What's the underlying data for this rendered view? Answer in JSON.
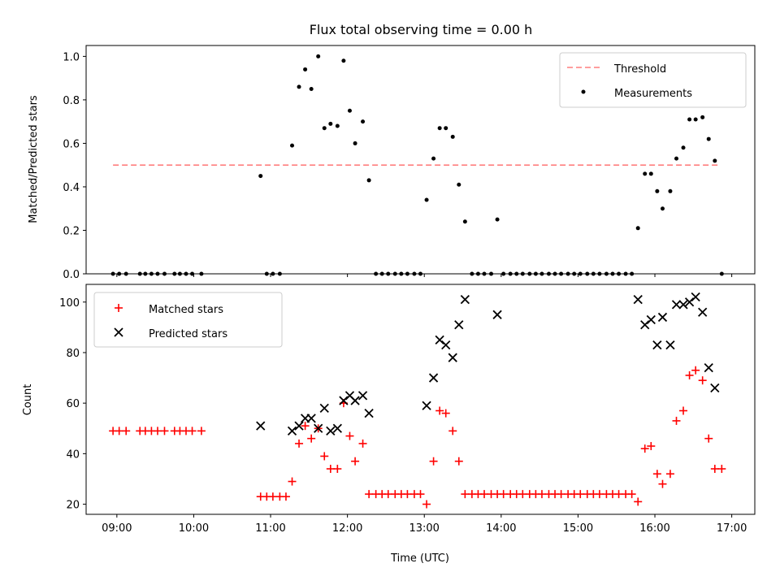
{
  "colors": {
    "threshold": "#ff7f7f",
    "measurements": "#000000",
    "matched": "#ff0000",
    "predicted": "#000000"
  },
  "chart_data": [
    {
      "type": "scatter",
      "title": "Flux total observing time = 0.00 h",
      "ylabel": "Matched/Predicted stars",
      "xlabel": "",
      "xlim": [
        8.6,
        17.3
      ],
      "ylim": [
        0,
        1.05
      ],
      "yticks": [
        0.0,
        0.2,
        0.4,
        0.6,
        0.8,
        1.0
      ],
      "ytick_labels": [
        "0.0",
        "0.2",
        "0.4",
        "0.6",
        "0.8",
        "1.0"
      ],
      "legend_position": "top-right",
      "threshold": {
        "name": "Threshold",
        "value": 0.5,
        "x_range": [
          8.95,
          16.85
        ]
      },
      "series": [
        {
          "name": "Measurements",
          "points": [
            [
              8.95,
              0
            ],
            [
              9.03,
              0
            ],
            [
              9.12,
              0
            ],
            [
              9.3,
              0
            ],
            [
              9.37,
              0
            ],
            [
              9.45,
              0
            ],
            [
              9.53,
              0
            ],
            [
              9.62,
              0
            ],
            [
              9.75,
              0
            ],
            [
              9.82,
              0
            ],
            [
              9.9,
              0
            ],
            [
              9.98,
              0
            ],
            [
              10.1,
              0
            ],
            [
              10.87,
              0.45
            ],
            [
              10.95,
              0
            ],
            [
              11.03,
              0
            ],
            [
              11.12,
              0
            ],
            [
              11.28,
              0.59
            ],
            [
              11.37,
              0.86
            ],
            [
              11.45,
              0.94
            ],
            [
              11.53,
              0.85
            ],
            [
              11.62,
              1.0
            ],
            [
              11.7,
              0.67
            ],
            [
              11.78,
              0.69
            ],
            [
              11.87,
              0.68
            ],
            [
              11.95,
              0.98
            ],
            [
              12.03,
              0.75
            ],
            [
              12.1,
              0.6
            ],
            [
              12.2,
              0.7
            ],
            [
              12.28,
              0.43
            ],
            [
              12.37,
              0
            ],
            [
              12.45,
              0
            ],
            [
              12.53,
              0
            ],
            [
              12.62,
              0
            ],
            [
              12.7,
              0
            ],
            [
              12.78,
              0
            ],
            [
              12.87,
              0
            ],
            [
              12.95,
              0
            ],
            [
              13.03,
              0.34
            ],
            [
              13.12,
              0.53
            ],
            [
              13.2,
              0.67
            ],
            [
              13.28,
              0.67
            ],
            [
              13.37,
              0.63
            ],
            [
              13.45,
              0.41
            ],
            [
              13.53,
              0.24
            ],
            [
              13.62,
              0
            ],
            [
              13.7,
              0
            ],
            [
              13.78,
              0
            ],
            [
              13.87,
              0
            ],
            [
              13.95,
              0.25
            ],
            [
              14.03,
              0
            ],
            [
              14.12,
              0
            ],
            [
              14.2,
              0
            ],
            [
              14.28,
              0
            ],
            [
              14.37,
              0
            ],
            [
              14.45,
              0
            ],
            [
              14.53,
              0
            ],
            [
              14.62,
              0
            ],
            [
              14.7,
              0
            ],
            [
              14.78,
              0
            ],
            [
              14.87,
              0
            ],
            [
              14.95,
              0
            ],
            [
              15.03,
              0
            ],
            [
              15.12,
              0
            ],
            [
              15.2,
              0
            ],
            [
              15.28,
              0
            ],
            [
              15.37,
              0
            ],
            [
              15.45,
              0
            ],
            [
              15.53,
              0
            ],
            [
              15.62,
              0
            ],
            [
              15.7,
              0
            ],
            [
              15.78,
              0.21
            ],
            [
              15.87,
              0.46
            ],
            [
              15.95,
              0.46
            ],
            [
              16.03,
              0.38
            ],
            [
              16.1,
              0.3
            ],
            [
              16.2,
              0.38
            ],
            [
              16.28,
              0.53
            ],
            [
              16.37,
              0.58
            ],
            [
              16.45,
              0.71
            ],
            [
              16.53,
              0.71
            ],
            [
              16.62,
              0.72
            ],
            [
              16.7,
              0.62
            ],
            [
              16.78,
              0.52
            ],
            [
              16.87,
              0
            ]
          ]
        }
      ]
    },
    {
      "type": "scatter",
      "title": "",
      "ylabel": "Count",
      "xlabel": "Time (UTC)",
      "xlim": [
        8.6,
        17.3
      ],
      "ylim": [
        16,
        107
      ],
      "xticks": [
        9,
        10,
        11,
        12,
        13,
        14,
        15,
        16,
        17
      ],
      "xtick_labels": [
        "09:00",
        "10:00",
        "11:00",
        "12:00",
        "13:00",
        "14:00",
        "15:00",
        "16:00",
        "17:00"
      ],
      "yticks": [
        20,
        40,
        60,
        80,
        100
      ],
      "ytick_labels": [
        "20",
        "40",
        "60",
        "80",
        "100"
      ],
      "legend_position": "top-left",
      "series": [
        {
          "name": "Matched stars",
          "points": [
            [
              8.95,
              49
            ],
            [
              9.03,
              49
            ],
            [
              9.12,
              49
            ],
            [
              9.3,
              49
            ],
            [
              9.37,
              49
            ],
            [
              9.45,
              49
            ],
            [
              9.53,
              49
            ],
            [
              9.62,
              49
            ],
            [
              9.75,
              49
            ],
            [
              9.82,
              49
            ],
            [
              9.9,
              49
            ],
            [
              9.98,
              49
            ],
            [
              10.1,
              49
            ],
            [
              10.87,
              23
            ],
            [
              10.95,
              23
            ],
            [
              11.03,
              23
            ],
            [
              11.12,
              23
            ],
            [
              11.2,
              23
            ],
            [
              11.28,
              29
            ],
            [
              11.37,
              44
            ],
            [
              11.45,
              51
            ],
            [
              11.53,
              46
            ],
            [
              11.62,
              50
            ],
            [
              11.7,
              39
            ],
            [
              11.78,
              34
            ],
            [
              11.87,
              34
            ],
            [
              11.95,
              60
            ],
            [
              12.03,
              47
            ],
            [
              12.1,
              37
            ],
            [
              12.2,
              44
            ],
            [
              12.28,
              24
            ],
            [
              12.37,
              24
            ],
            [
              12.45,
              24
            ],
            [
              12.53,
              24
            ],
            [
              12.62,
              24
            ],
            [
              12.7,
              24
            ],
            [
              12.78,
              24
            ],
            [
              12.87,
              24
            ],
            [
              12.95,
              24
            ],
            [
              13.03,
              20
            ],
            [
              13.12,
              37
            ],
            [
              13.2,
              57
            ],
            [
              13.28,
              56
            ],
            [
              13.37,
              49
            ],
            [
              13.45,
              37
            ],
            [
              13.53,
              24
            ],
            [
              13.62,
              24
            ],
            [
              13.7,
              24
            ],
            [
              13.78,
              24
            ],
            [
              13.87,
              24
            ],
            [
              13.95,
              24
            ],
            [
              14.03,
              24
            ],
            [
              14.12,
              24
            ],
            [
              14.2,
              24
            ],
            [
              14.28,
              24
            ],
            [
              14.37,
              24
            ],
            [
              14.45,
              24
            ],
            [
              14.53,
              24
            ],
            [
              14.62,
              24
            ],
            [
              14.7,
              24
            ],
            [
              14.78,
              24
            ],
            [
              14.87,
              24
            ],
            [
              14.95,
              24
            ],
            [
              15.03,
              24
            ],
            [
              15.12,
              24
            ],
            [
              15.2,
              24
            ],
            [
              15.28,
              24
            ],
            [
              15.37,
              24
            ],
            [
              15.45,
              24
            ],
            [
              15.53,
              24
            ],
            [
              15.62,
              24
            ],
            [
              15.7,
              24
            ],
            [
              15.78,
              21
            ],
            [
              15.87,
              42
            ],
            [
              15.95,
              43
            ],
            [
              16.03,
              32
            ],
            [
              16.1,
              28
            ],
            [
              16.2,
              32
            ],
            [
              16.28,
              53
            ],
            [
              16.37,
              57
            ],
            [
              16.45,
              71
            ],
            [
              16.53,
              73
            ],
            [
              16.62,
              69
            ],
            [
              16.7,
              46
            ],
            [
              16.78,
              34
            ],
            [
              16.87,
              34
            ]
          ]
        },
        {
          "name": "Predicted stars",
          "points": [
            [
              10.87,
              51
            ],
            [
              11.28,
              49
            ],
            [
              11.37,
              51
            ],
            [
              11.45,
              54
            ],
            [
              11.53,
              54
            ],
            [
              11.62,
              50
            ],
            [
              11.7,
              58
            ],
            [
              11.78,
              49
            ],
            [
              11.87,
              50
            ],
            [
              11.95,
              61
            ],
            [
              12.03,
              63
            ],
            [
              12.1,
              61
            ],
            [
              12.2,
              63
            ],
            [
              12.28,
              56
            ],
            [
              13.03,
              59
            ],
            [
              13.12,
              70
            ],
            [
              13.2,
              85
            ],
            [
              13.28,
              83
            ],
            [
              13.37,
              78
            ],
            [
              13.45,
              91
            ],
            [
              13.53,
              101
            ],
            [
              13.95,
              95
            ],
            [
              15.78,
              101
            ],
            [
              15.87,
              91
            ],
            [
              15.95,
              93
            ],
            [
              16.03,
              83
            ],
            [
              16.1,
              94
            ],
            [
              16.2,
              83
            ],
            [
              16.28,
              99
            ],
            [
              16.37,
              99
            ],
            [
              16.45,
              100
            ],
            [
              16.53,
              102
            ],
            [
              16.62,
              96
            ],
            [
              16.7,
              74
            ],
            [
              16.78,
              66
            ]
          ]
        }
      ]
    }
  ]
}
